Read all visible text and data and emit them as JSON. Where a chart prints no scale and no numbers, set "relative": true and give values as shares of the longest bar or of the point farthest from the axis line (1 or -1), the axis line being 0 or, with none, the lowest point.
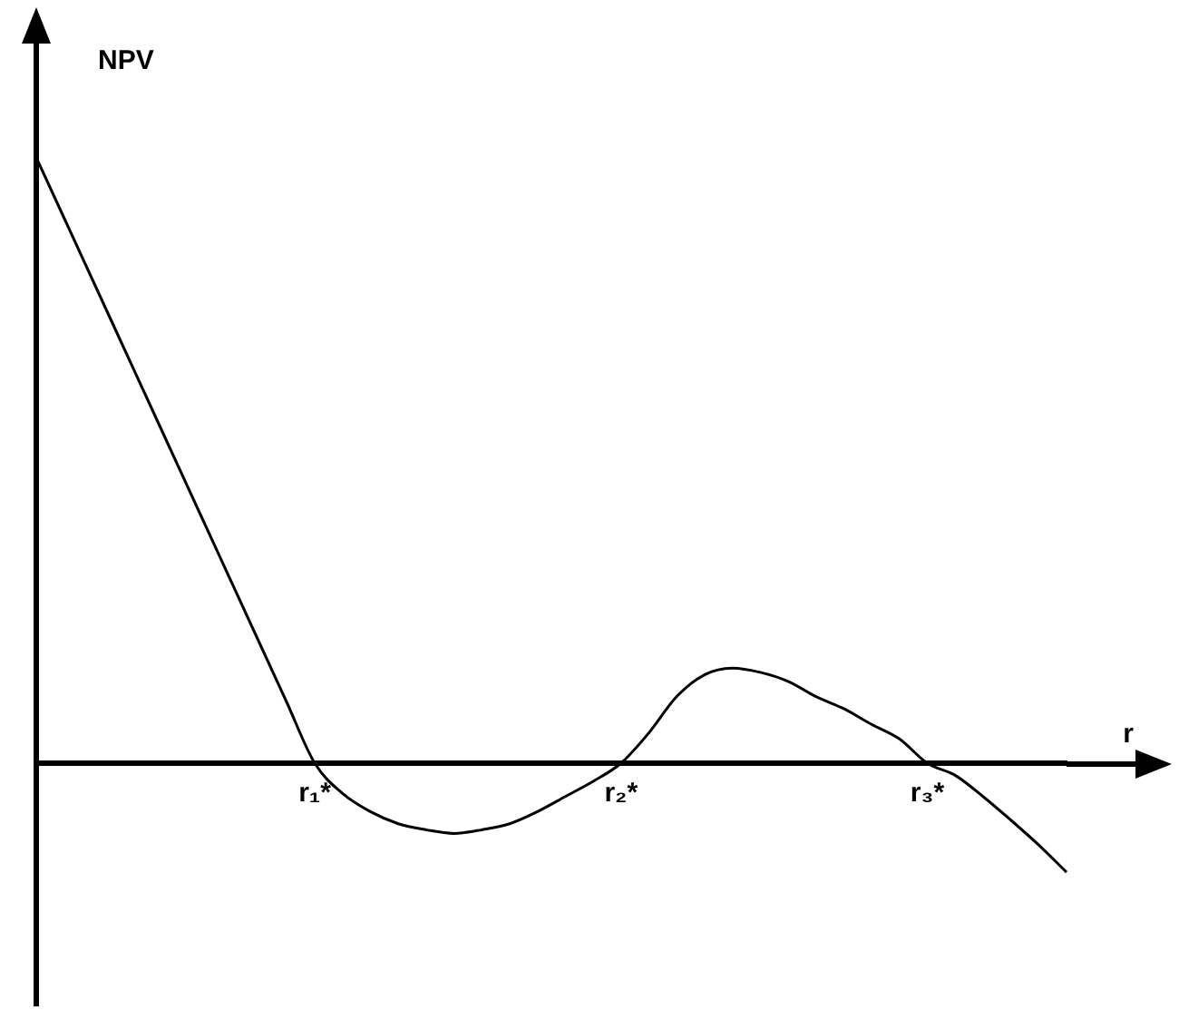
{
  "chart_data": {
    "type": "line",
    "relative": true,
    "ylabel": "NPV",
    "xlabel": "r",
    "color": "#000000",
    "marker": "none",
    "grid": false,
    "legend": false,
    "categories": [
      null,
      null,
      null,
      null,
      null,
      null,
      null,
      null,
      null,
      null,
      "r₁*",
      null,
      null,
      null,
      null,
      null,
      null,
      null,
      null,
      null,
      null,
      "r₂*",
      null,
      null,
      null,
      null,
      null,
      null,
      null,
      null,
      null,
      null,
      "r₃*",
      null,
      null,
      null,
      null,
      null
    ],
    "values": [
      1,
      0.9,
      0.8,
      0.7,
      0.6,
      0.5,
      0.4,
      0.3,
      0.2,
      0.1,
      0,
      -0.05,
      -0.08,
      -0.1,
      -0.11,
      -0.116,
      -0.11,
      -0.1,
      -0.08,
      -0.055,
      -0.03,
      0,
      0.05,
      0.11,
      0.146,
      0.157,
      0.15,
      0.135,
      0.11,
      0.09,
      0.064,
      0.04,
      0,
      -0.02,
      -0.055,
      -0.094,
      -0.135,
      -0.18
    ]
  }
}
